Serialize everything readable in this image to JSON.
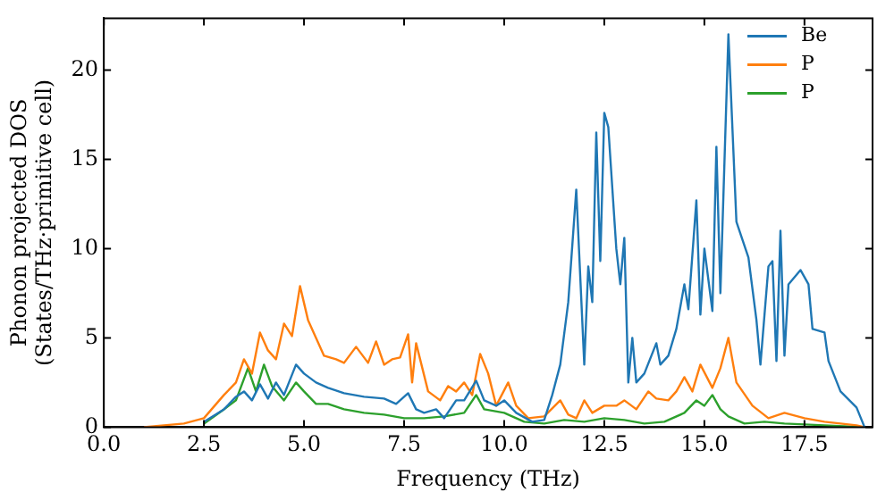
{
  "chart_data": {
    "type": "line",
    "xlabel": "Frequency (THz)",
    "ylabel": "Phonon projected DOS\n(States/THz·primitive cell)",
    "xlim": [
      0,
      19.2
    ],
    "ylim": [
      0,
      22.9
    ],
    "xticks": [
      {
        "value": 0,
        "label": "0.0"
      },
      {
        "value": 2.5,
        "label": "2.5"
      },
      {
        "value": 5,
        "label": "5.0"
      },
      {
        "value": 7.5,
        "label": "7.5"
      },
      {
        "value": 10,
        "label": "10.0"
      },
      {
        "value": 12.5,
        "label": "12.5"
      },
      {
        "value": 15,
        "label": "15.0"
      },
      {
        "value": 17.5,
        "label": "17.5"
      }
    ],
    "yticks": [
      0,
      5,
      10,
      15,
      20
    ],
    "grid": false,
    "legend": "top right",
    "marker": "none",
    "line_style": "solid",
    "series": [
      {
        "name": "Be",
        "color": "#1f77b4",
        "x": [
          2.5,
          3.0,
          3.3,
          3.5,
          3.7,
          3.9,
          4.1,
          4.3,
          4.5,
          4.8,
          5.0,
          5.3,
          5.6,
          6.0,
          6.5,
          7.0,
          7.3,
          7.6,
          7.8,
          8.0,
          8.3,
          8.5,
          8.8,
          9.0,
          9.3,
          9.5,
          9.8,
          10.0,
          10.3,
          10.7,
          11.0,
          11.2,
          11.4,
          11.6,
          11.8,
          12.0,
          12.1,
          12.2,
          12.3,
          12.4,
          12.5,
          12.6,
          12.8,
          12.9,
          13.0,
          13.1,
          13.2,
          13.3,
          13.5,
          13.8,
          13.9,
          14.1,
          14.3,
          14.5,
          14.6,
          14.8,
          14.9,
          15.0,
          15.2,
          15.3,
          15.4,
          15.6,
          15.8,
          16.1,
          16.3,
          16.4,
          16.6,
          16.7,
          16.8,
          16.9,
          17.0,
          17.1,
          17.4,
          17.6,
          17.7,
          18.0,
          18.1,
          18.4,
          18.8,
          19.0
        ],
        "values": [
          0.3,
          1.0,
          1.7,
          2.0,
          1.5,
          2.4,
          1.6,
          2.5,
          1.8,
          3.5,
          3.0,
          2.5,
          2.2,
          1.9,
          1.7,
          1.6,
          1.3,
          1.9,
          1.0,
          0.8,
          1.0,
          0.5,
          1.5,
          1.5,
          2.6,
          1.5,
          1.2,
          1.5,
          0.8,
          0.3,
          0.4,
          1.8,
          3.5,
          7,
          13.3,
          3.5,
          9,
          7,
          16.5,
          9.3,
          17.6,
          16.8,
          10,
          8,
          10.6,
          2.5,
          5,
          2.5,
          3,
          4.7,
          3.5,
          4,
          5.5,
          8,
          6.6,
          12.7,
          6.3,
          10,
          6.5,
          15.7,
          7.5,
          22,
          11.5,
          9.5,
          6,
          3.5,
          9,
          9.3,
          3.7,
          11,
          4,
          8,
          8.8,
          8,
          5.5,
          5.3,
          3.7,
          2,
          1.1,
          0
        ]
      },
      {
        "name": "P",
        "color": "#ff7f0e",
        "x": [
          1.0,
          2.0,
          2.5,
          3.0,
          3.3,
          3.5,
          3.7,
          3.9,
          4.1,
          4.3,
          4.5,
          4.7,
          4.9,
          5.1,
          5.3,
          5.5,
          5.8,
          6.0,
          6.3,
          6.6,
          6.8,
          7.0,
          7.2,
          7.4,
          7.6,
          7.7,
          7.8,
          8.1,
          8.4,
          8.6,
          8.8,
          9.0,
          9.2,
          9.4,
          9.6,
          9.8,
          10.1,
          10.3,
          10.6,
          11.0,
          11.4,
          11.6,
          11.8,
          12.0,
          12.2,
          12.5,
          12.8,
          13.0,
          13.3,
          13.6,
          13.8,
          14.1,
          14.3,
          14.5,
          14.7,
          14.9,
          15.2,
          15.4,
          15.6,
          15.8,
          16.2,
          16.6,
          17.0,
          17.5,
          18.0,
          18.8,
          19.0
        ],
        "values": [
          0,
          0.2,
          0.5,
          1.8,
          2.5,
          3.8,
          3.0,
          5.3,
          4.3,
          3.8,
          5.8,
          5.1,
          7.9,
          6,
          5,
          4,
          3.8,
          3.6,
          4.5,
          3.6,
          4.8,
          3.5,
          3.8,
          3.9,
          5.2,
          2.5,
          4.7,
          2,
          1.5,
          2.3,
          2,
          2.5,
          1.8,
          4.1,
          3,
          1.2,
          2.5,
          1.2,
          0.5,
          0.6,
          1.5,
          0.7,
          0.5,
          1.5,
          0.8,
          1.2,
          1.2,
          1.5,
          1,
          2,
          1.6,
          1.5,
          2.0,
          2.8,
          2.0,
          3.5,
          2.2,
          3.3,
          5.0,
          2.5,
          1.2,
          0.5,
          0.8,
          0.5,
          0.3,
          0.1,
          0
        ]
      },
      {
        "name": "P",
        "color": "#2ca02c",
        "x": [
          2.5,
          3.0,
          3.3,
          3.6,
          3.8,
          4.0,
          4.2,
          4.5,
          4.8,
          5.0,
          5.3,
          5.6,
          6.0,
          6.5,
          7.0,
          7.5,
          8.0,
          8.5,
          9.0,
          9.3,
          9.5,
          10.0,
          10.5,
          11.0,
          11.5,
          12.0,
          12.5,
          13.0,
          13.5,
          14.0,
          14.5,
          14.8,
          15.0,
          15.2,
          15.4,
          15.6,
          16.0,
          16.5,
          17.0,
          18.0,
          19.0
        ],
        "values": [
          0.2,
          1.0,
          1.5,
          3.3,
          2.0,
          3.5,
          2.3,
          1.5,
          2.5,
          2.0,
          1.3,
          1.3,
          1.0,
          0.8,
          0.7,
          0.5,
          0.5,
          0.6,
          0.8,
          1.8,
          1.0,
          0.8,
          0.3,
          0.2,
          0.4,
          0.3,
          0.5,
          0.4,
          0.2,
          0.3,
          0.8,
          1.5,
          1.2,
          1.8,
          1.0,
          0.6,
          0.2,
          0.3,
          0.2,
          0.1,
          0
        ]
      }
    ]
  }
}
